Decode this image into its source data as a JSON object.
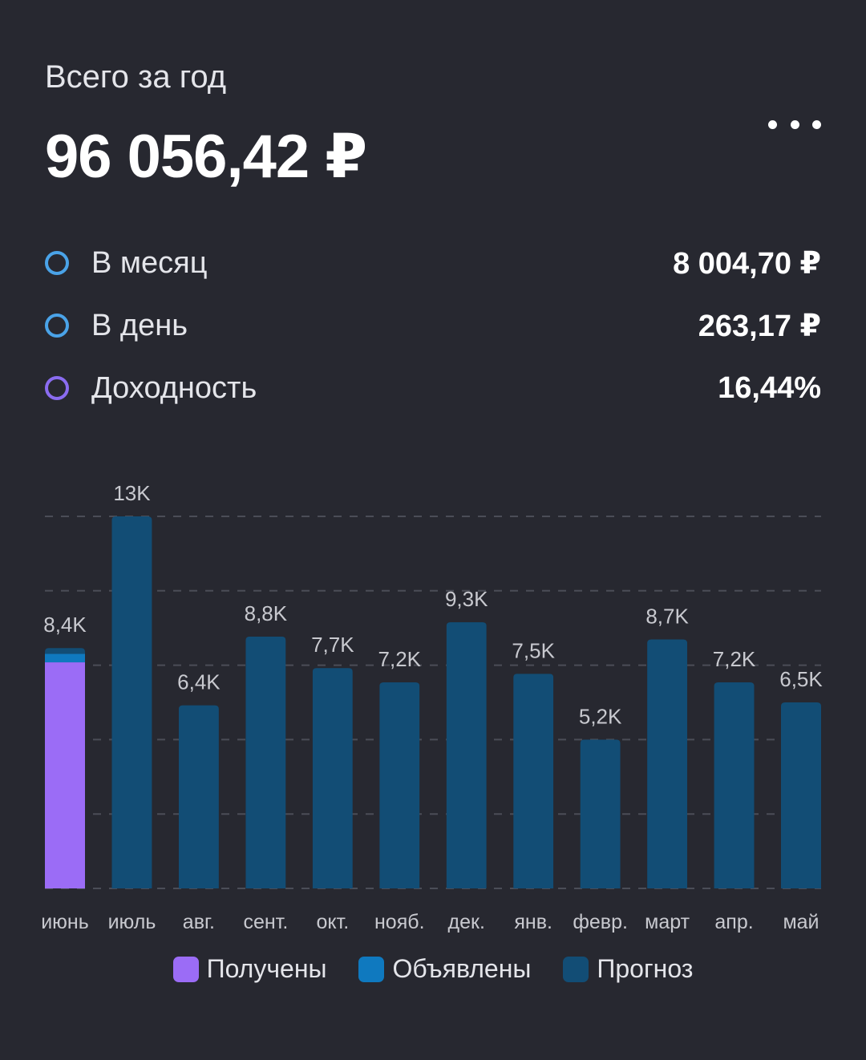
{
  "header": {
    "title": "Всего за год",
    "total": "96 056,42 ₽"
  },
  "menu_icon": "more-horizontal-icon",
  "stats": [
    {
      "label": "В месяц",
      "value": "8 004,70 ₽",
      "ring_color": "#4aa3e8"
    },
    {
      "label": "В день",
      "value": "263,17 ₽",
      "ring_color": "#4aa3e8"
    },
    {
      "label": "Доходность",
      "value": "16,44%",
      "ring_color": "#8a6cf0"
    }
  ],
  "colors": {
    "received": "#9b6cf6",
    "declared": "#0f79bf",
    "forecast": "#124d75",
    "grid": "#4b4d57",
    "label": "#c8c9cf"
  },
  "chart_data": {
    "type": "bar",
    "stacked": true,
    "categories": [
      "июнь",
      "июль",
      "авг.",
      "сент.",
      "окт.",
      "нояб.",
      "дек.",
      "янв.",
      "февр.",
      "март",
      "апр.",
      "май"
    ],
    "data_labels": [
      "8,4K",
      "13K",
      "6,4K",
      "8,8K",
      "7,7K",
      "7,2K",
      "9,3K",
      "7,5K",
      "5,2K",
      "8,7K",
      "7,2K",
      "6,5K"
    ],
    "series": [
      {
        "name": "Получены",
        "values": [
          7900,
          0,
          0,
          0,
          0,
          0,
          0,
          0,
          0,
          0,
          0,
          0
        ]
      },
      {
        "name": "Объявлены",
        "values": [
          300,
          0,
          0,
          0,
          0,
          0,
          0,
          0,
          0,
          0,
          0,
          0
        ]
      },
      {
        "name": "Прогноз",
        "values": [
          200,
          13000,
          6400,
          8800,
          7700,
          7200,
          9300,
          7500,
          5200,
          8700,
          7200,
          6500
        ]
      }
    ],
    "ylim": [
      0,
      13000
    ],
    "grid": true,
    "legend_position": "bottom"
  }
}
